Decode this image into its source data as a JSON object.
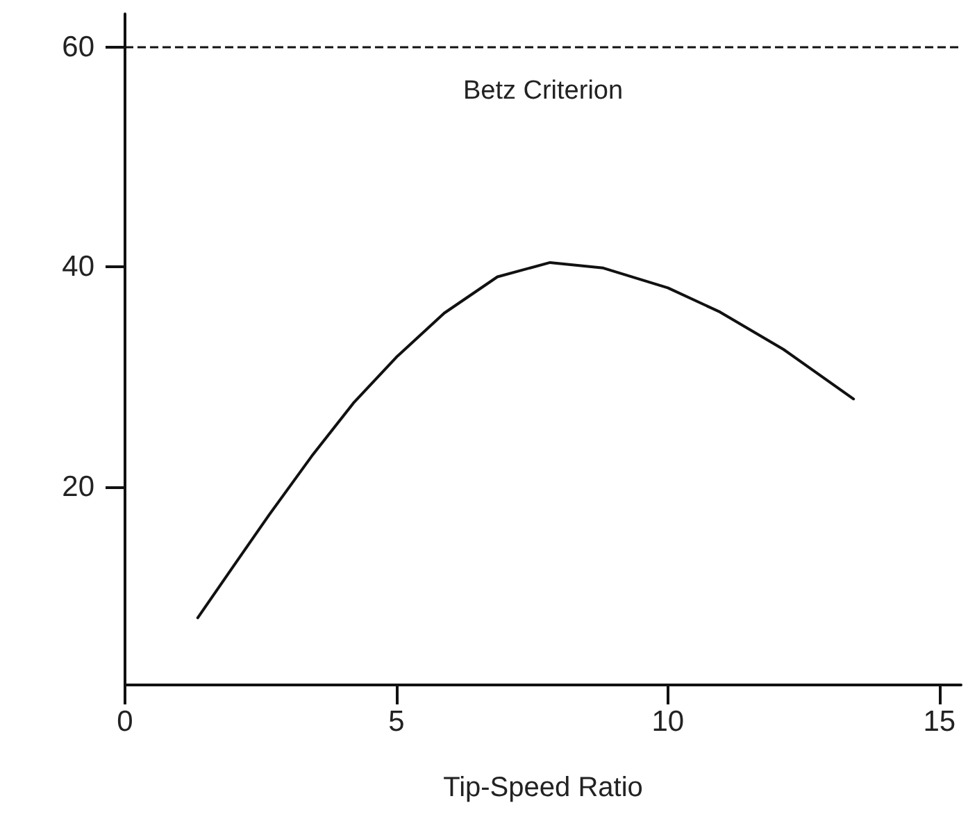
{
  "chart_data": {
    "type": "line",
    "xlabel": "Tip-Speed Ratio",
    "x": [
      1.34,
      1.97,
      2.66,
      3.44,
      4.22,
      5.0,
      5.88,
      6.86,
      7.83,
      8.81,
      10.0,
      10.96,
      12.13,
      13.42
    ],
    "series": [
      {
        "color": "#111111",
        "values": [
          8.1,
          12.6,
          17.5,
          22.8,
          27.7,
          31.8,
          35.8,
          39.1,
          40.4,
          39.9,
          38.1,
          35.9,
          32.5,
          28.0
        ]
      }
    ],
    "xlim": [
      0,
      15.4
    ],
    "xticks": [
      0,
      5,
      10,
      15
    ],
    "ylim": [
      2,
      63
    ],
    "yticks": [
      20,
      40,
      60
    ],
    "ref_lines": [
      {
        "axis": "y",
        "value": 60,
        "label": "Betz Criterion",
        "line_style": "dashed",
        "color": "#111111"
      }
    ],
    "grid": false,
    "marker": "none",
    "line_style": "solid"
  }
}
